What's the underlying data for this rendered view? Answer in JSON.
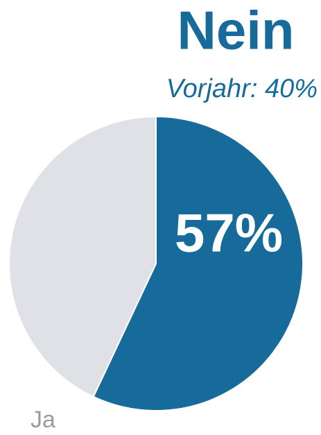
{
  "chart_data": {
    "type": "pie",
    "subtitle": "Vorjahr: 40%",
    "categories": [
      "Nein",
      "Ja"
    ],
    "values": [
      57,
      43
    ],
    "value_labels": [
      "57%",
      null
    ],
    "colors": [
      "#176b9b",
      "#e0e1e6"
    ]
  }
}
